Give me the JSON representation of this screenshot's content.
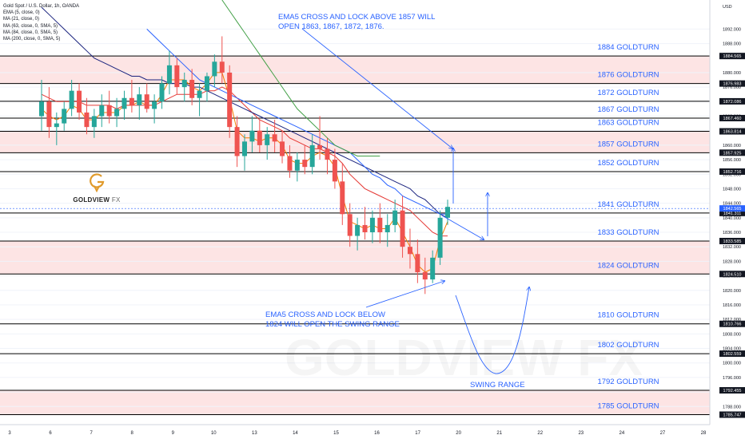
{
  "legend": {
    "symbol": "Gold Spot / U.S. Dollar, 1h, OANDA",
    "items": [
      "EMA (5, close, 0)",
      "MA (21, close, 0)",
      "MA (63, close, 0, SMA, 5)",
      "MA (84, close, 0, SMA, 5)",
      "MA (200, close, 0, SMA, 5)"
    ]
  },
  "logo": {
    "word": "GOLDVIEW",
    "suffix": "FX",
    "watermark": "GOLDVIEW FX",
    "color": "#e09a2b"
  },
  "annotations": {
    "top": [
      "EMA5 CROSS AND LOCK ABOVE 1857 WILL",
      "OPEN 1863, 1867, 1872, 1876."
    ],
    "bottom": [
      "EMA5 CROSS AND LOCK BELOW",
      "1824 WILL OPEN THE SWING RANGE"
    ],
    "swing": "SWING RANGE"
  },
  "colors": {
    "annotation": "#2962ff",
    "ema5": "#f57c00",
    "ma21": "#e53935",
    "ma63": "#1a237e",
    "ma84": "#2962ff",
    "ma200": "#43a047",
    "up": "#26a69a",
    "down": "#ef5350",
    "zone": "#fde4e4",
    "axis_tag": "#131722",
    "current_tag": "#2962ff"
  },
  "chart_data": {
    "type": "candlestick",
    "symbol": "Gold Spot / U.S. Dollar",
    "timeframe": "1h",
    "axis_unit": "USD",
    "ylim": [
      1783,
      1900
    ],
    "x_ticks": [
      "3",
      "6",
      "7",
      "8",
      "9",
      "10",
      "13",
      "14",
      "15",
      "16",
      "17",
      "20",
      "21",
      "22",
      "23",
      "24",
      "27",
      "28"
    ],
    "y_ticks": [
      1892,
      1888,
      1880,
      1876,
      1872,
      1868,
      1864,
      1860,
      1856,
      1852,
      1848,
      1844,
      1840,
      1836,
      1832,
      1828,
      1824,
      1820,
      1816,
      1812,
      1808,
      1804,
      1800,
      1796,
      1792,
      1788
    ],
    "levels": [
      {
        "label": "1884 GOLDTURN",
        "price": 1884.565,
        "tag": "1884.565"
      },
      {
        "label": "1876 GOLDTURN",
        "price": 1876.983,
        "tag": "1876.983"
      },
      {
        "label": "1872 GOLDTURN",
        "price": 1872.086,
        "tag": "1872.086"
      },
      {
        "label": "1867 GOLDTURN",
        "price": 1867.46,
        "tag": "1867.460"
      },
      {
        "label": "1863 GOLDTURN",
        "price": 1863.814,
        "tag": "1863.814"
      },
      {
        "label": "1857 GOLDTURN",
        "price": 1857.925,
        "tag": "1857.925"
      },
      {
        "label": "1852 GOLDTURN",
        "price": 1852.716,
        "tag": "1852.716"
      },
      {
        "label": "1841 GOLDTURN",
        "price": 1841.311,
        "tag": "1841.311"
      },
      {
        "label": "1833 GOLDTURN",
        "price": 1833.585,
        "tag": "1833.585"
      },
      {
        "label": "1824 GOLDTURN",
        "price": 1824.51,
        "tag": "1824.510"
      },
      {
        "label": "1810 GOLDTURN",
        "price": 1810.766,
        "tag": "1810.766"
      },
      {
        "label": "1802 GOLDTURN",
        "price": 1802.559,
        "tag": "1802.559"
      },
      {
        "label": "1792 GOLDTURN",
        "price": 1792.455,
        "tag": "1792.455"
      },
      {
        "label": "1785 GOLDTURN",
        "price": 1785.747,
        "tag": "1785.747"
      }
    ],
    "current_price": {
      "value": 1842.565,
      "tag": "1842.565"
    },
    "zones": [
      [
        1876.983,
        1884.565
      ],
      [
        1857.925,
        1863.814
      ],
      [
        1824.51,
        1833.585
      ],
      [
        1785.747,
        1792.455
      ]
    ],
    "candles": [
      [
        1868,
        1878,
        1864,
        1872
      ],
      [
        1872,
        1876,
        1862,
        1865
      ],
      [
        1865,
        1869,
        1860,
        1866
      ],
      [
        1866,
        1872,
        1864,
        1870
      ],
      [
        1870,
        1878,
        1868,
        1875
      ],
      [
        1875,
        1877,
        1867,
        1869
      ],
      [
        1869,
        1873,
        1863,
        1865
      ],
      [
        1865,
        1870,
        1862,
        1868
      ],
      [
        1868,
        1874,
        1865,
        1871
      ],
      [
        1871,
        1875,
        1866,
        1868
      ],
      [
        1868,
        1873,
        1865,
        1870
      ],
      [
        1870,
        1875,
        1867,
        1873
      ],
      [
        1873,
        1878,
        1869,
        1871
      ],
      [
        1871,
        1876,
        1867,
        1874
      ],
      [
        1874,
        1877,
        1869,
        1870
      ],
      [
        1870,
        1874,
        1866,
        1872
      ],
      [
        1872,
        1879,
        1870,
        1877
      ],
      [
        1877,
        1886,
        1874,
        1882
      ],
      [
        1882,
        1884,
        1874,
        1876
      ],
      [
        1876,
        1880,
        1872,
        1878
      ],
      [
        1878,
        1881,
        1871,
        1873
      ],
      [
        1873,
        1877,
        1868,
        1875
      ],
      [
        1875,
        1880,
        1872,
        1879
      ],
      [
        1879,
        1885,
        1876,
        1883
      ],
      [
        1883,
        1890,
        1877,
        1880
      ],
      [
        1880,
        1882,
        1862,
        1865
      ],
      [
        1865,
        1868,
        1854,
        1857
      ],
      [
        1857,
        1863,
        1853,
        1861
      ],
      [
        1861,
        1868,
        1858,
        1864
      ],
      [
        1864,
        1867,
        1858,
        1860
      ],
      [
        1860,
        1865,
        1856,
        1863
      ],
      [
        1863,
        1867,
        1858,
        1861
      ],
      [
        1861,
        1864,
        1855,
        1857
      ],
      [
        1857,
        1860,
        1851,
        1853
      ],
      [
        1853,
        1858,
        1850,
        1856
      ],
      [
        1856,
        1860,
        1852,
        1854
      ],
      [
        1854,
        1863,
        1852,
        1860
      ],
      [
        1860,
        1868,
        1856,
        1859
      ],
      [
        1859,
        1862,
        1852,
        1856
      ],
      [
        1856,
        1859,
        1848,
        1850
      ],
      [
        1850,
        1855,
        1838,
        1841
      ],
      [
        1841,
        1844,
        1832,
        1835
      ],
      [
        1835,
        1840,
        1831,
        1838
      ],
      [
        1838,
        1843,
        1834,
        1836
      ],
      [
        1836,
        1842,
        1833,
        1840
      ],
      [
        1840,
        1844,
        1833,
        1836
      ],
      [
        1836,
        1841,
        1832,
        1838
      ],
      [
        1838,
        1845,
        1836,
        1842
      ],
      [
        1842,
        1846,
        1829,
        1832
      ],
      [
        1832,
        1837,
        1826,
        1830
      ],
      [
        1830,
        1834,
        1822,
        1825
      ],
      [
        1825,
        1829,
        1819,
        1823
      ],
      [
        1823,
        1831,
        1822,
        1829
      ],
      [
        1829,
        1842,
        1827,
        1840
      ],
      [
        1840,
        1845,
        1838,
        1843
      ]
    ],
    "moving_averages": [
      {
        "name": "EMA 5",
        "values": [
          1870,
          1868,
          1867,
          1868,
          1871,
          1870,
          1867,
          1867,
          1869,
          1869,
          1869,
          1871,
          1871,
          1872,
          1871,
          1871,
          1874,
          1878,
          1878,
          1878,
          1876,
          1875,
          1877,
          1880,
          1880,
          1873,
          1864,
          1862,
          1862,
          1861,
          1862,
          1862,
          1860,
          1856,
          1855,
          1855,
          1857,
          1858,
          1857,
          1854,
          1846,
          1839,
          1838,
          1837,
          1838,
          1837,
          1837,
          1840,
          1836,
          1832,
          1827,
          1825,
          1826,
          1834,
          1839
        ]
      },
      {
        "name": "MA 21",
        "values": [
          1874,
          1873,
          1872,
          1872,
          1872,
          1872,
          1871,
          1871,
          1871,
          1871,
          1870,
          1871,
          1871,
          1871,
          1871,
          1871,
          1872,
          1873,
          1874,
          1874,
          1874,
          1874,
          1875,
          1875,
          1876,
          1875,
          1873,
          1871,
          1869,
          1867,
          1866,
          1865,
          1864,
          1862,
          1861,
          1860,
          1859,
          1859,
          1858,
          1857,
          1855,
          1852,
          1850,
          1848,
          1847,
          1846,
          1845,
          1844,
          1843,
          1842,
          1840,
          1838,
          1836,
          1835,
          1835
        ]
      },
      {
        "name": "MA 63",
        "values": [
          1898,
          1896,
          1894,
          1892,
          1890,
          1888,
          1886,
          1884,
          1883,
          1882,
          1881,
          1880,
          1879,
          1879,
          1878,
          1878,
          1878,
          1877,
          1877,
          1877,
          1876,
          1876,
          1875,
          1874,
          1873,
          1872,
          1871,
          1870,
          1869,
          1868,
          1867,
          1866,
          1865,
          1864,
          1863,
          1862,
          1861,
          1860,
          1859,
          1858,
          1857,
          1856,
          1855,
          1854,
          1853,
          1852,
          1851,
          1850,
          1849,
          1848,
          1846,
          1845,
          1843,
          1841,
          1840
        ]
      },
      {
        "name": "MA 84",
        "values": [
          null,
          null,
          null,
          null,
          null,
          null,
          null,
          null,
          null,
          null,
          null,
          null,
          null,
          null,
          1892,
          1890,
          1888,
          1886,
          1884,
          1882,
          1880,
          1878,
          1877,
          1876,
          1875,
          1874,
          1873,
          1872,
          1871,
          1870,
          1869,
          1868,
          1867,
          1866,
          1865,
          1864,
          1863,
          1862,
          1861,
          1860,
          1859,
          1858,
          1856,
          1854,
          1852,
          1851,
          1849,
          1848,
          1846,
          1845,
          1844,
          1843,
          1842,
          1841,
          1841
        ]
      },
      {
        "name": "MA 200",
        "values": [
          null,
          null,
          null,
          null,
          null,
          null,
          null,
          null,
          null,
          null,
          null,
          null,
          null,
          null,
          null,
          null,
          null,
          null,
          null,
          null,
          null,
          null,
          null,
          null,
          1900,
          1897,
          1894,
          1891,
          1888,
          1885,
          1882,
          1879,
          1876,
          1873,
          1870,
          1868,
          1866,
          1864,
          1862,
          1860,
          1859,
          1858,
          1857,
          1857,
          1857,
          1857,
          null,
          null,
          null,
          null,
          null,
          null,
          null,
          null,
          null
        ]
      }
    ]
  }
}
